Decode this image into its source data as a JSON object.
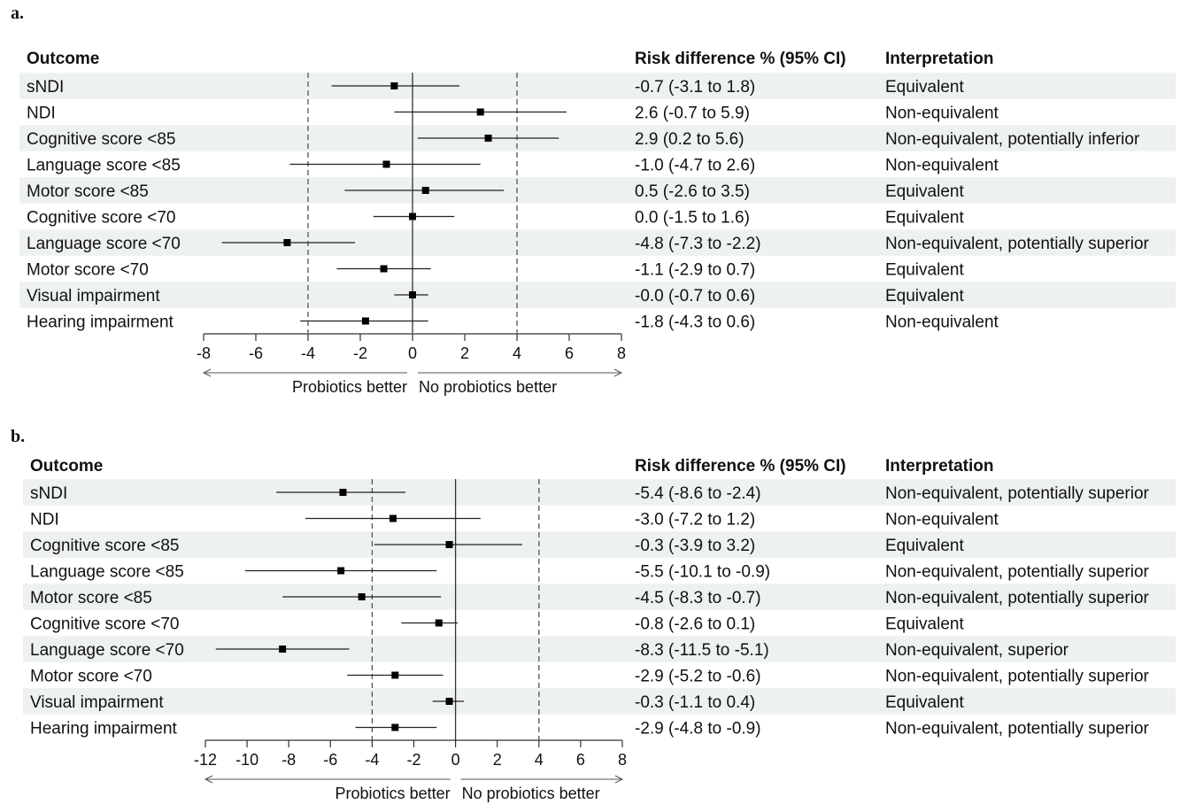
{
  "panels": [
    {
      "label": "a."
    },
    {
      "label": "b."
    }
  ],
  "chart_data": [
    {
      "type": "forest",
      "panel": "a.",
      "headers": {
        "outcome": "Outcome",
        "rd": "Risk difference % (95% CI)",
        "interpretation": "Interpretation"
      },
      "xlim": [
        -8,
        8
      ],
      "ticks": [
        -8,
        -6,
        -4,
        -2,
        0,
        2,
        4,
        6,
        8
      ],
      "margins": [
        -4,
        4
      ],
      "direction_left": "Probiotics better",
      "direction_right": "No probiotics better",
      "rows": [
        {
          "outcome": "sNDI",
          "est": -0.7,
          "lo": -3.1,
          "hi": 1.8,
          "rd": "-0.7 (-3.1 to 1.8)",
          "interpretation": "Equivalent"
        },
        {
          "outcome": "NDI",
          "est": 2.6,
          "lo": -0.7,
          "hi": 5.9,
          "rd": "2.6 (-0.7 to 5.9)",
          "interpretation": "Non-equivalent"
        },
        {
          "outcome": "Cognitive score <85",
          "est": 2.9,
          "lo": 0.2,
          "hi": 5.6,
          "rd": "2.9 (0.2 to 5.6)",
          "interpretation": "Non-equivalent, potentially inferior"
        },
        {
          "outcome": "Language score <85",
          "est": -1.0,
          "lo": -4.7,
          "hi": 2.6,
          "rd": "-1.0 (-4.7 to 2.6)",
          "interpretation": "Non-equivalent"
        },
        {
          "outcome": "Motor score <85",
          "est": 0.5,
          "lo": -2.6,
          "hi": 3.5,
          "rd": "0.5 (-2.6 to 3.5)",
          "interpretation": "Equivalent"
        },
        {
          "outcome": "Cognitive score <70",
          "est": 0.0,
          "lo": -1.5,
          "hi": 1.6,
          "rd": "0.0 (-1.5 to 1.6)",
          "interpretation": "Equivalent"
        },
        {
          "outcome": "Language score <70",
          "est": -4.8,
          "lo": -7.3,
          "hi": -2.2,
          "rd": "-4.8 (-7.3 to -2.2)",
          "interpretation": "Non-equivalent, potentially superior"
        },
        {
          "outcome": "Motor score <70",
          "est": -1.1,
          "lo": -2.9,
          "hi": 0.7,
          "rd": "-1.1 (-2.9 to 0.7)",
          "interpretation": "Equivalent"
        },
        {
          "outcome": "Visual impairment",
          "est": 0.0,
          "lo": -0.7,
          "hi": 0.6,
          "rd": "-0.0 (-0.7 to 0.6)",
          "interpretation": "Equivalent"
        },
        {
          "outcome": "Hearing impairment",
          "est": -1.8,
          "lo": -4.3,
          "hi": 0.6,
          "rd": "-1.8 (-4.3 to 0.6)",
          "interpretation": "Non-equivalent"
        }
      ]
    },
    {
      "type": "forest",
      "panel": "b.",
      "headers": {
        "outcome": "Outcome",
        "rd": "Risk difference % (95% CI)",
        "interpretation": "Interpretation"
      },
      "xlim": [
        -12,
        8
      ],
      "ticks": [
        -12,
        -10,
        -8,
        -6,
        -4,
        -2,
        0,
        2,
        4,
        6,
        8
      ],
      "margins": [
        -4,
        4
      ],
      "direction_left": "Probiotics better",
      "direction_right": "No probiotics better",
      "rows": [
        {
          "outcome": "sNDI",
          "est": -5.4,
          "lo": -8.6,
          "hi": -2.4,
          "rd": "-5.4 (-8.6 to -2.4)",
          "interpretation": "Non-equivalent, potentially superior"
        },
        {
          "outcome": "NDI",
          "est": -3.0,
          "lo": -7.2,
          "hi": 1.2,
          "rd": "-3.0 (-7.2 to 1.2)",
          "interpretation": "Non-equivalent"
        },
        {
          "outcome": "Cognitive score <85",
          "est": -0.3,
          "lo": -3.9,
          "hi": 3.2,
          "rd": "-0.3 (-3.9 to 3.2)",
          "interpretation": "Equivalent"
        },
        {
          "outcome": "Language score <85",
          "est": -5.5,
          "lo": -10.1,
          "hi": -0.9,
          "rd": "-5.5 (-10.1 to -0.9)",
          "interpretation": "Non-equivalent, potentially superior"
        },
        {
          "outcome": "Motor score <85",
          "est": -4.5,
          "lo": -8.3,
          "hi": -0.7,
          "rd": "-4.5 (-8.3 to -0.7)",
          "interpretation": "Non-equivalent, potentially superior"
        },
        {
          "outcome": "Cognitive score <70",
          "est": -0.8,
          "lo": -2.6,
          "hi": 0.1,
          "rd": "-0.8 (-2.6 to 0.1)",
          "interpretation": "Equivalent"
        },
        {
          "outcome": "Language score <70",
          "est": -8.3,
          "lo": -11.5,
          "hi": -5.1,
          "rd": "-8.3 (-11.5 to -5.1)",
          "interpretation": "Non-equivalent, superior"
        },
        {
          "outcome": "Motor score <70",
          "est": -2.9,
          "lo": -5.2,
          "hi": -0.6,
          "rd": "-2.9 (-5.2 to -0.6)",
          "interpretation": "Non-equivalent, potentially superior"
        },
        {
          "outcome": "Visual impairment",
          "est": -0.3,
          "lo": -1.1,
          "hi": 0.4,
          "rd": "-0.3 (-1.1 to 0.4)",
          "interpretation": "Equivalent"
        },
        {
          "outcome": "Hearing impairment",
          "est": -2.9,
          "lo": -4.8,
          "hi": -0.9,
          "rd": "-2.9 (-4.8 to -0.9)",
          "interpretation": "Non-equivalent, potentially superior"
        }
      ]
    }
  ]
}
